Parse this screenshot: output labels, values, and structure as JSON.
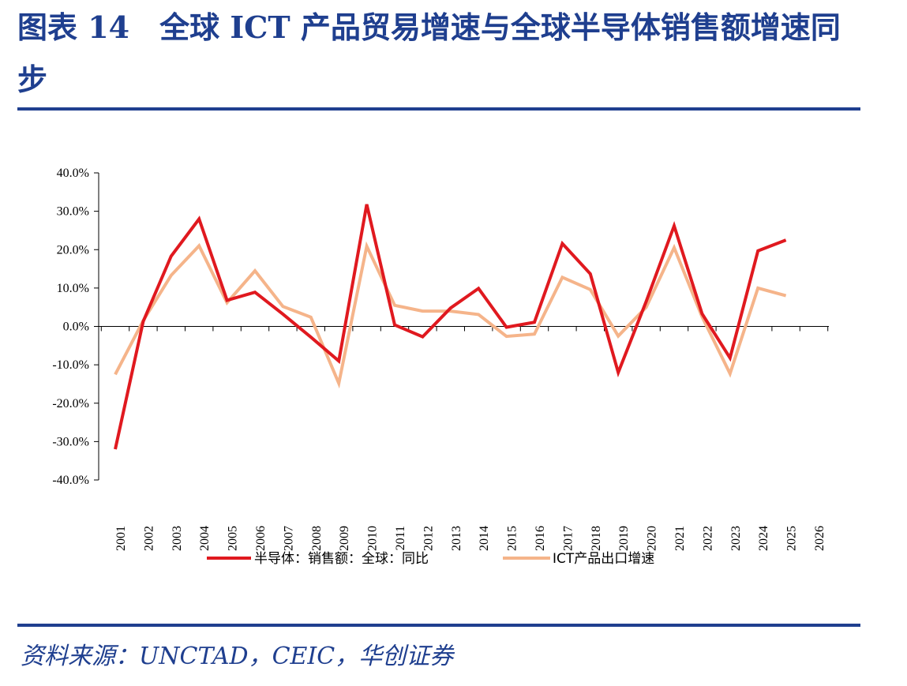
{
  "header": {
    "title": "图表 14　全球 ICT 产品贸易增速与全球半导体销售额增速同步"
  },
  "footer": {
    "source": "资料来源：UNCTAD，CEIC，华创证券"
  },
  "chart_data": {
    "type": "line",
    "title": "",
    "xlabel": "",
    "ylabel": "",
    "x": [
      "2001",
      "2002",
      "2003",
      "2004",
      "2005",
      "2006",
      "2007",
      "2008",
      "2009",
      "2010",
      "2011",
      "2012",
      "2013",
      "2014",
      "2015",
      "2016",
      "2017",
      "2018",
      "2019",
      "2020",
      "2021",
      "2022",
      "2023",
      "2024",
      "2025",
      "2026"
    ],
    "ylim": [
      -40,
      40
    ],
    "yticks": [
      "40.0%",
      "30.0%",
      "20.0%",
      "10.0%",
      "0.0%",
      "-10.0%",
      "-20.0%",
      "-30.0%",
      "-40.0%"
    ],
    "ytick_values": [
      40,
      30,
      20,
      10,
      0,
      -10,
      -20,
      -30,
      -40
    ],
    "legend_position": "bottom",
    "grid": false,
    "series": [
      {
        "name": "半导体：销售额：全球：同比",
        "color": "#e0191f",
        "values": [
          -32.0,
          1.3,
          18.3,
          28.0,
          6.8,
          8.9,
          3.2,
          -2.8,
          -9.0,
          31.8,
          0.4,
          -2.7,
          4.8,
          9.9,
          -0.2,
          1.1,
          21.6,
          13.7,
          -12.0,
          6.5,
          26.2,
          3.3,
          -8.2,
          19.7,
          22.5,
          null
        ]
      },
      {
        "name": "ICT产品出口增速",
        "color": "#f5b48a",
        "values": [
          -12.5,
          1.5,
          13.3,
          21.0,
          6.2,
          14.5,
          5.2,
          2.4,
          -14.8,
          20.9,
          5.5,
          4.0,
          4.0,
          3.1,
          -2.6,
          -2.0,
          12.8,
          9.6,
          -2.5,
          5.0,
          20.5,
          2.5,
          -12.3,
          10.0,
          8.0,
          null
        ]
      }
    ]
  }
}
